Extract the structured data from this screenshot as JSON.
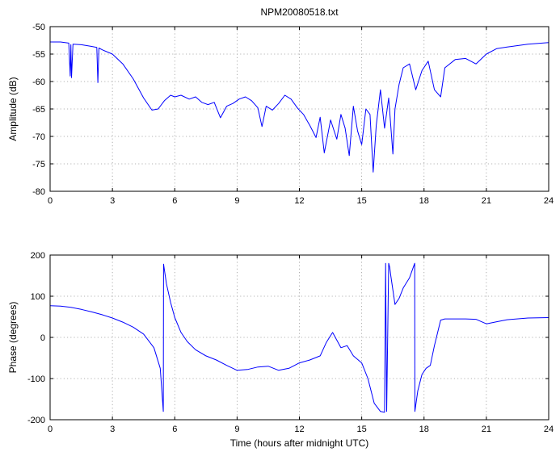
{
  "chart_data": [
    {
      "type": "line",
      "title": "NPM20080518.txt",
      "xlabel": "",
      "ylabel": "Amplitude (dB)",
      "xlim": [
        0,
        24
      ],
      "ylim": [
        -80,
        -50
      ],
      "xticks": [
        "0",
        "3",
        "6",
        "9",
        "12",
        "15",
        "18",
        "21",
        "24"
      ],
      "yticks": [
        "-50",
        "-55",
        "-60",
        "-65",
        "-70",
        "-75",
        "-80"
      ],
      "grid": true,
      "series": [
        {
          "color": "#0000ff",
          "x": [
            0,
            0.5,
            0.9,
            0.97,
            1.0,
            1.03,
            1.1,
            1.5,
            2.0,
            2.25,
            2.3,
            2.35,
            2.5,
            3.0,
            3.5,
            4.0,
            4.5,
            4.9,
            5.2,
            5.5,
            5.8,
            6.0,
            6.3,
            6.7,
            7.0,
            7.3,
            7.6,
            7.9,
            8.2,
            8.5,
            8.8,
            9.1,
            9.4,
            9.7,
            10.0,
            10.2,
            10.4,
            10.7,
            11.0,
            11.3,
            11.6,
            11.9,
            12.2,
            12.5,
            12.8,
            13.0,
            13.2,
            13.5,
            13.8,
            14.0,
            14.2,
            14.4,
            14.6,
            14.8,
            15.0,
            15.2,
            15.4,
            15.55,
            15.7,
            15.9,
            16.1,
            16.3,
            16.5,
            16.6,
            16.8,
            17.0,
            17.3,
            17.6,
            17.9,
            18.2,
            18.5,
            18.8,
            19.0,
            19.5,
            20.0,
            20.5,
            21.0,
            21.5,
            22.0,
            23.0,
            24.0
          ],
          "y": [
            -52.8,
            -52.8,
            -53.0,
            -59.0,
            -53.3,
            -59.3,
            -53.2,
            -53.3,
            -53.6,
            -53.8,
            -60.2,
            -53.9,
            -54.2,
            -55.0,
            -56.8,
            -59.5,
            -63.0,
            -65.2,
            -65.0,
            -63.5,
            -62.5,
            -62.8,
            -62.5,
            -63.2,
            -62.8,
            -63.8,
            -64.2,
            -63.8,
            -66.6,
            -64.5,
            -64.0,
            -63.2,
            -62.8,
            -63.5,
            -64.8,
            -68.2,
            -64.5,
            -65.2,
            -64.0,
            -62.5,
            -63.2,
            -64.8,
            -66.0,
            -68.0,
            -70.2,
            -66.5,
            -73.0,
            -67.0,
            -70.5,
            -66.0,
            -68.5,
            -73.5,
            -64.5,
            -69.0,
            -71.5,
            -65.0,
            -66.0,
            -76.5,
            -68.0,
            -61.5,
            -68.5,
            -63.0,
            -73.2,
            -65.0,
            -60.5,
            -57.5,
            -56.8,
            -61.5,
            -58.0,
            -56.3,
            -61.5,
            -62.8,
            -57.5,
            -56.0,
            -55.8,
            -56.8,
            -55.0,
            -54.0,
            -53.7,
            -53.2,
            -52.9
          ]
        }
      ]
    },
    {
      "type": "line",
      "title": "",
      "xlabel": "Time (hours after midnight UTC)",
      "ylabel": "Phase (degrees)",
      "xlim": [
        0,
        24
      ],
      "ylim": [
        -200,
        200
      ],
      "xticks": [
        "0",
        "3",
        "6",
        "9",
        "12",
        "15",
        "18",
        "21",
        "24"
      ],
      "yticks": [
        "200",
        "100",
        "0",
        "-100",
        "-200"
      ],
      "grid": true,
      "series": [
        {
          "color": "#0000ff",
          "x": [
            0,
            0.5,
            1.0,
            1.5,
            2.0,
            2.5,
            3.0,
            3.5,
            4.0,
            4.5,
            5.0,
            5.3,
            5.45,
            5.46,
            5.6,
            5.8,
            6.0,
            6.3,
            6.6,
            7.0,
            7.5,
            8.0,
            8.5,
            9.0,
            9.5,
            10.0,
            10.5,
            11.0,
            11.5,
            12.0,
            12.5,
            13.0,
            13.3,
            13.6,
            14.0,
            14.3,
            14.6,
            15.0,
            15.3,
            15.6,
            15.9,
            16.1,
            16.15,
            16.2,
            16.3,
            16.35,
            16.4,
            16.6,
            16.8,
            17.0,
            17.3,
            17.55,
            17.56,
            17.7,
            17.9,
            18.1,
            18.3,
            18.5,
            18.8,
            19.0,
            20.0,
            20.5,
            21.0,
            21.5,
            22.0,
            23.0,
            24.0
          ],
          "y": [
            77,
            76,
            73,
            68,
            62,
            55,
            47,
            37,
            25,
            8,
            -25,
            -75,
            -180,
            178,
            130,
            85,
            48,
            12,
            -10,
            -30,
            -45,
            -55,
            -68,
            -80,
            -78,
            -72,
            -70,
            -80,
            -75,
            -62,
            -55,
            -45,
            -12,
            12,
            -25,
            -20,
            -45,
            -62,
            -100,
            -160,
            -180,
            -182,
            180,
            -180,
            180,
            170,
            150,
            80,
            95,
            120,
            145,
            180,
            -180,
            -130,
            -90,
            -75,
            -68,
            -20,
            42,
            45,
            45,
            44,
            33,
            38,
            43,
            47,
            48
          ]
        }
      ]
    }
  ]
}
